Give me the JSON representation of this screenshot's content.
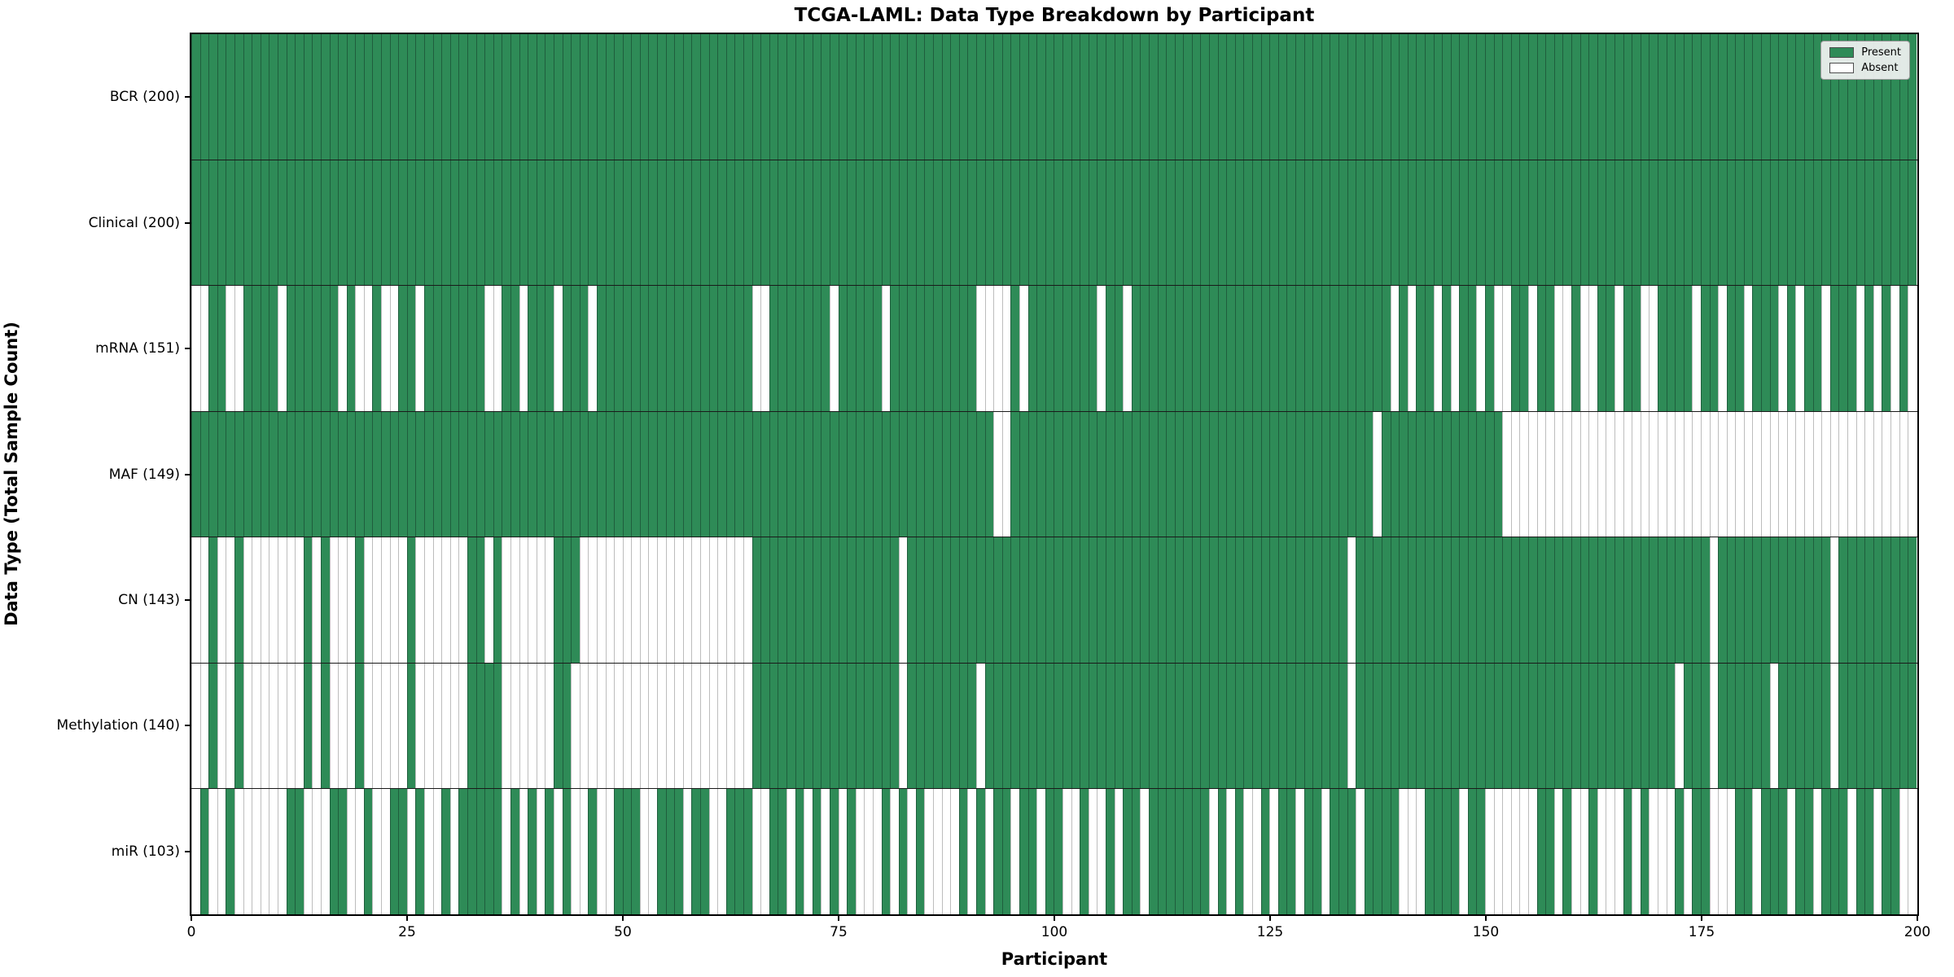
{
  "title": "TCGA-LAML: Data Type Breakdown by Participant",
  "axes": {
    "xlabel": "Participant",
    "ylabel": "Data Type (Total Sample Count)",
    "x_ticks": [
      0,
      25,
      50,
      75,
      100,
      125,
      150,
      175,
      200
    ],
    "x_range": [
      0,
      200
    ]
  },
  "legend": {
    "items": [
      {
        "label": "Present",
        "key": "present"
      },
      {
        "label": "Absent",
        "key": "absent"
      }
    ]
  },
  "colors": {
    "present": "#2e8b57",
    "absent": "#ffffff",
    "present_edge": "#1f5e3d",
    "absent_edge": "#bdbdbd",
    "row_separator": "#1a1a1a",
    "spine": "#000000",
    "legend_bg": "#f2f2f2"
  },
  "chart_data": {
    "type": "heatmap",
    "title": "TCGA-LAML: Data Type Breakdown by Participant",
    "xlabel": "Participant",
    "ylabel": "Data Type (Total Sample Count)",
    "x_range": [
      0,
      200
    ],
    "n_participants": 200,
    "legend": [
      "Present",
      "Absent"
    ],
    "value_encoding": {
      "1": "Present",
      "0": "Absent"
    },
    "rows": [
      {
        "label": "BCR (200)",
        "data_type": "BCR",
        "present_count": 200,
        "pattern": "11111111111111111111111111111111111111111111111111111111111111111111111111111111111111111111111111111111111111111111111111111111111111111111111111111111111111111111111111111111111111111111111111111111"
      },
      {
        "label": "Clinical (200)",
        "data_type": "Clinical",
        "present_count": 200,
        "pattern": "11111111111111111111111111111111111111111111111111111111111111111111111111111111111111111111111111111111111111111111111111111111111111111111111111111111111111111111111111111111111111111111111111111111"
      },
      {
        "label": "mRNA (151)",
        "data_type": "mRNA",
        "present_count": 151,
        "pattern": "00110011110111111010010011011111110011011101110111111111111111111001111111011111011111111110000101111111101101111111111111111111111111111110101101011010011011001001101100111101101101110101101110101010"
      },
      {
        "label": "MAF (149)",
        "data_type": "MAF",
        "present_count": 149,
        "pattern": "11111111111111111111111111111111111111111111111111111111111111111111111111111111111111111111100111111111111111111111111111111111111111111011111111111111000000000000000000000000000000000000000000000000"
      },
      {
        "label": "CN (143)",
        "data_type": "CN",
        "present_count": 143,
        "pattern": "00100100000001010001000001000000110100000011100000000000000000000111111111111111110111111111111111111111111111111111111111111111111111011111111111111111111111111111111111111111011111111111110111111111"
      },
      {
        "label": "Methylation (140)",
        "data_type": "Methylation",
        "present_count": 140,
        "pattern": "00100100000001010001000001000000111100000011000000000000000000000111111111111111110111111110111111111111111111111111111111111111111111011111111111111111111111111111111111110111011111101111110111111111"
      },
      {
        "label": "miR (103)",
        "data_type": "miR",
        "present_count": 103,
        "pattern": "01001000000110001100100110100101111101010101001001110011101100111001101010101000101010000101011011011001001011011111110101001011011011101111000111101100000011010010001010001011000110111011011101101100"
      }
    ]
  }
}
